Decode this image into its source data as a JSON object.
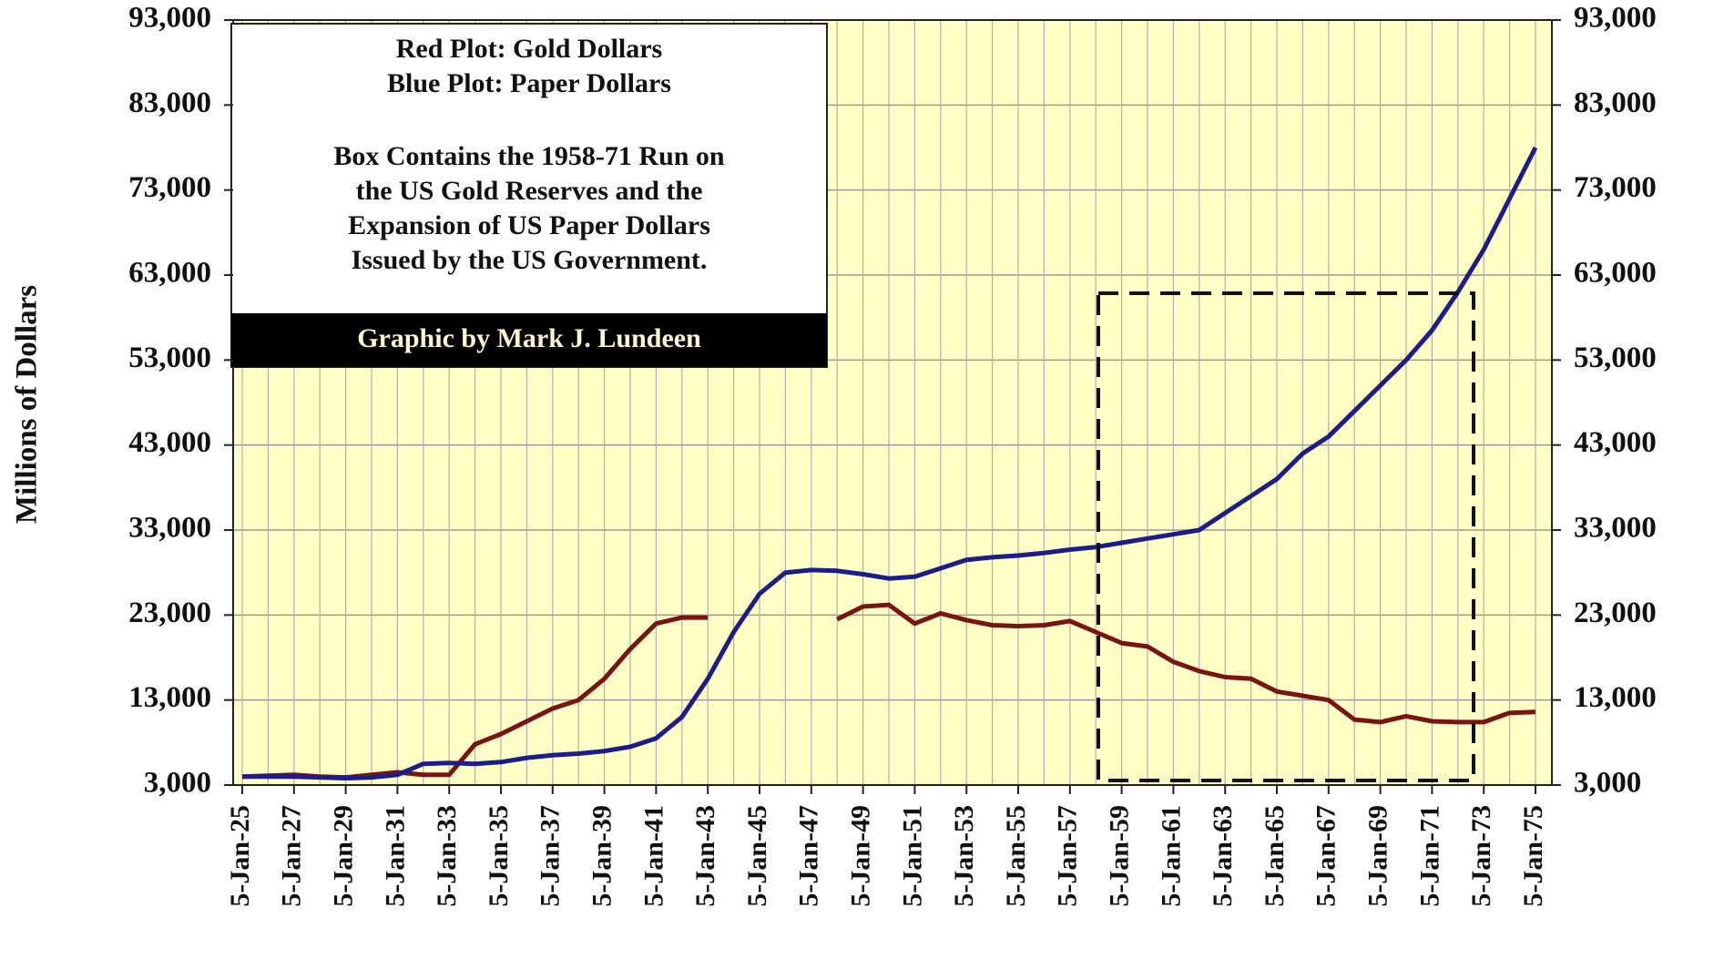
{
  "chart_data": {
    "type": "line",
    "y_label": "Millions of Dollars",
    "categories": [
      "5-Jan-25",
      null,
      "5-Jan-27",
      null,
      "5-Jan-29",
      null,
      "5-Jan-31",
      null,
      "5-Jan-33",
      null,
      "5-Jan-35",
      null,
      "5-Jan-37",
      null,
      "5-Jan-39",
      null,
      "5-Jan-41",
      null,
      "5-Jan-43",
      null,
      "5-Jan-45",
      null,
      "5-Jan-47",
      null,
      "5-Jan-49",
      null,
      "5-Jan-51",
      null,
      "5-Jan-53",
      null,
      "5-Jan-55",
      null,
      "5-Jan-57",
      null,
      "5-Jan-59",
      null,
      "5-Jan-61",
      null,
      "5-Jan-63",
      null,
      "5-Jan-65",
      null,
      "5-Jan-67",
      null,
      "5-Jan-69",
      null,
      "5-Jan-71",
      null,
      "5-Jan-73",
      null,
      "5-Jan-75"
    ],
    "series": [
      {
        "name": "Red Plot: Gold Dollars",
        "color": "#7a1414",
        "values": [
          4000,
          4100,
          4200,
          4000,
          3900,
          4200,
          4500,
          4200,
          4200,
          7800,
          9000,
          10500,
          12000,
          13000,
          15500,
          19000,
          22000,
          22700,
          22700,
          null,
          null,
          null,
          null,
          22500,
          24000,
          24200,
          22000,
          23200,
          22400,
          21800,
          21700,
          21800,
          22300,
          21000,
          19700,
          19300,
          17500,
          16400,
          15700,
          15500,
          14000,
          13500,
          13000,
          10700,
          10400,
          11100,
          10500,
          10400,
          10400,
          11500,
          11600
        ]
      },
      {
        "name": "Blue Plot: Paper Dollars",
        "color": "#1c1c8e",
        "values": [
          4000,
          4000,
          4000,
          3900,
          3800,
          3900,
          4200,
          5500,
          5600,
          5500,
          5700,
          6200,
          6500,
          6700,
          7000,
          7500,
          8500,
          11000,
          15500,
          21000,
          25500,
          28000,
          28300,
          28200,
          27800,
          27300,
          27500,
          28500,
          29500,
          29800,
          30000,
          30300,
          30700,
          31000,
          31500,
          32000,
          32500,
          33000,
          35000,
          37000,
          39000,
          42000,
          44000,
          47000,
          50000,
          53000,
          56500,
          61000,
          66000,
          72000,
          78000
        ]
      }
    ],
    "ylim": [
      3000,
      93000
    ],
    "yticks": [
      {
        "value": 3000,
        "label": "3,000"
      },
      {
        "value": 13000,
        "label": "13,000"
      },
      {
        "value": 23000,
        "label": "23,000"
      },
      {
        "value": 33000,
        "label": "33,000"
      },
      {
        "value": 43000,
        "label": "43,000"
      },
      {
        "value": 53000,
        "label": "53,000"
      },
      {
        "value": 63000,
        "label": "63,000"
      },
      {
        "value": 73000,
        "label": "73,000"
      },
      {
        "value": 83000,
        "label": "83,000"
      },
      {
        "value": 93000,
        "label": "93,000"
      }
    ],
    "y2lim": [
      3000,
      93000
    ],
    "y2ticks": [
      {
        "value": 3000,
        "label": "3,000"
      },
      {
        "value": 13000,
        "label": "13,000"
      },
      {
        "value": 23000,
        "label": "23,000"
      },
      {
        "value": 33000,
        "label": "33,000"
      },
      {
        "value": 43000,
        "label": "43,000"
      },
      {
        "value": 53000,
        "label": "53,000"
      },
      {
        "value": 63000,
        "label": "63,000"
      },
      {
        "value": 73000,
        "label": "73,000"
      },
      {
        "value": 83000,
        "label": "83,000"
      },
      {
        "value": 93000,
        "label": "93,000"
      }
    ],
    "grid": true,
    "annotations": [
      "Box Contains the 1958-71 Run on",
      "the US Gold Reserves and the",
      "Expansion of US Paper Dollars",
      "Issued by the US Government."
    ],
    "credit": "Graphic by Mark J. Lundeen"
  }
}
